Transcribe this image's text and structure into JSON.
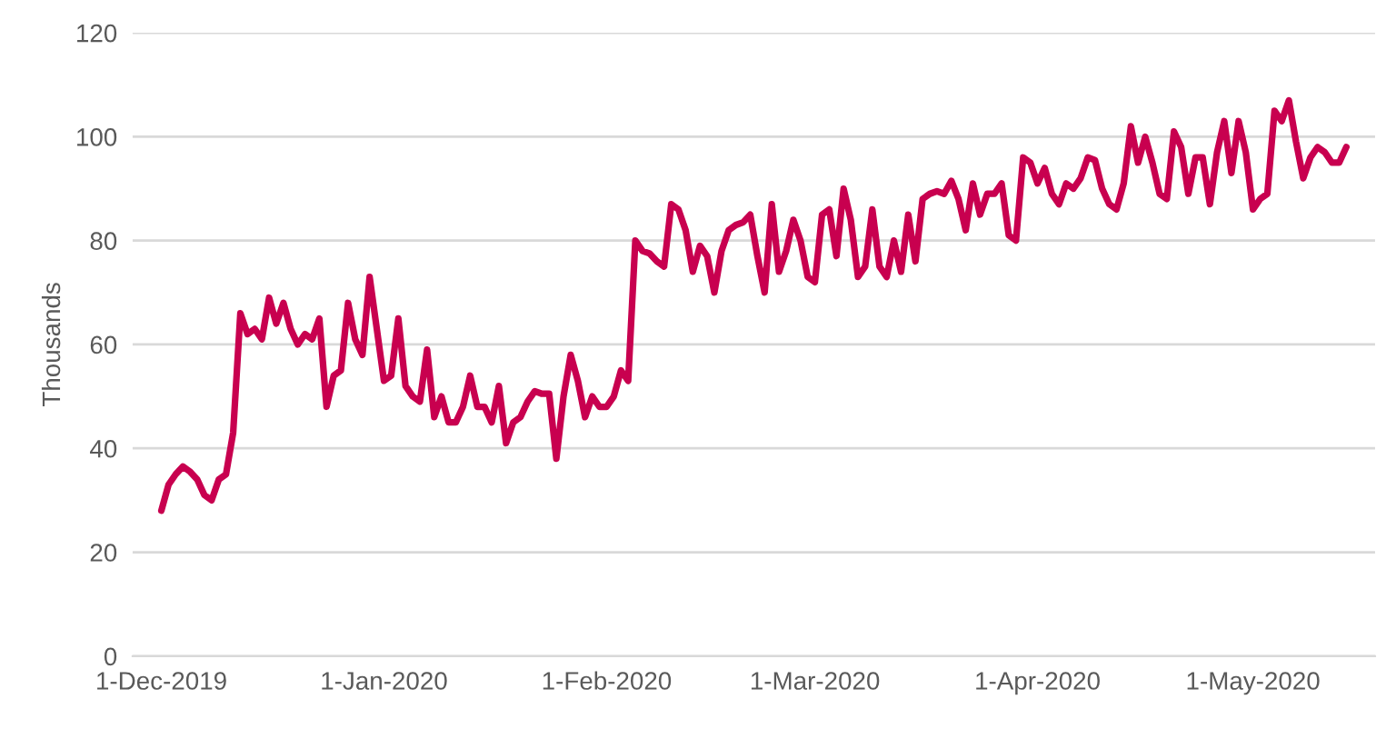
{
  "chart_data": {
    "type": "line",
    "ylabel": "Thousands",
    "x": [
      "2019-12-01",
      "2019-12-02",
      "2019-12-03",
      "2019-12-04",
      "2019-12-05",
      "2019-12-06",
      "2019-12-07",
      "2019-12-08",
      "2019-12-09",
      "2019-12-10",
      "2019-12-11",
      "2019-12-12",
      "2019-12-13",
      "2019-12-14",
      "2019-12-15",
      "2019-12-16",
      "2019-12-17",
      "2019-12-18",
      "2019-12-19",
      "2019-12-20",
      "2019-12-21",
      "2019-12-22",
      "2019-12-23",
      "2019-12-24",
      "2019-12-25",
      "2019-12-26",
      "2019-12-27",
      "2019-12-28",
      "2019-12-29",
      "2019-12-30",
      "2019-12-31",
      "2020-01-01",
      "2020-01-02",
      "2020-01-03",
      "2020-01-04",
      "2020-01-05",
      "2020-01-06",
      "2020-01-07",
      "2020-01-08",
      "2020-01-09",
      "2020-01-10",
      "2020-01-11",
      "2020-01-12",
      "2020-01-13",
      "2020-01-14",
      "2020-01-15",
      "2020-01-16",
      "2020-01-17",
      "2020-01-18",
      "2020-01-19",
      "2020-01-20",
      "2020-01-21",
      "2020-01-22",
      "2020-01-23",
      "2020-01-24",
      "2020-01-25",
      "2020-01-26",
      "2020-01-27",
      "2020-01-28",
      "2020-01-29",
      "2020-01-30",
      "2020-01-31",
      "2020-02-01",
      "2020-02-02",
      "2020-02-03",
      "2020-02-04",
      "2020-02-05",
      "2020-02-06",
      "2020-02-07",
      "2020-02-08",
      "2020-02-09",
      "2020-02-10",
      "2020-02-11",
      "2020-02-12",
      "2020-02-13",
      "2020-02-14",
      "2020-02-15",
      "2020-02-16",
      "2020-02-17",
      "2020-02-18",
      "2020-02-19",
      "2020-02-20",
      "2020-02-21",
      "2020-02-22",
      "2020-02-23",
      "2020-02-24",
      "2020-02-25",
      "2020-02-26",
      "2020-02-27",
      "2020-02-28",
      "2020-02-29",
      "2020-03-01",
      "2020-03-02",
      "2020-03-03",
      "2020-03-04",
      "2020-03-05",
      "2020-03-06",
      "2020-03-07",
      "2020-03-08",
      "2020-03-09",
      "2020-03-10",
      "2020-03-11",
      "2020-03-12",
      "2020-03-13",
      "2020-03-14",
      "2020-03-15",
      "2020-03-16",
      "2020-03-17",
      "2020-03-18",
      "2020-03-19",
      "2020-03-20",
      "2020-03-21",
      "2020-03-22",
      "2020-03-23",
      "2020-03-24",
      "2020-03-25",
      "2020-03-26",
      "2020-03-27",
      "2020-03-28",
      "2020-03-29",
      "2020-03-30",
      "2020-03-31",
      "2020-04-01",
      "2020-04-02",
      "2020-04-03",
      "2020-04-04",
      "2020-04-05",
      "2020-04-06",
      "2020-04-07",
      "2020-04-08",
      "2020-04-09",
      "2020-04-10",
      "2020-04-11",
      "2020-04-12",
      "2020-04-13",
      "2020-04-14",
      "2020-04-15",
      "2020-04-16",
      "2020-04-17",
      "2020-04-18",
      "2020-04-19",
      "2020-04-20",
      "2020-04-21",
      "2020-04-22",
      "2020-04-23",
      "2020-04-24",
      "2020-04-25",
      "2020-04-26",
      "2020-04-27",
      "2020-04-28",
      "2020-04-29",
      "2020-04-30",
      "2020-05-01",
      "2020-05-02",
      "2020-05-03",
      "2020-05-04",
      "2020-05-05",
      "2020-05-06",
      "2020-05-07",
      "2020-05-08",
      "2020-05-09",
      "2020-05-10",
      "2020-05-11",
      "2020-05-12",
      "2020-05-13",
      "2020-05-14"
    ],
    "series": [
      {
        "color": "#c8004f",
        "values": [
          28,
          33,
          35,
          36.5,
          35.5,
          34,
          31,
          30,
          34,
          35,
          43,
          66,
          62,
          63,
          61,
          69,
          64,
          68,
          63,
          60,
          62,
          61,
          65,
          48,
          54,
          55,
          68,
          61,
          58,
          73,
          63,
          53,
          54,
          65,
          52,
          50,
          49,
          59,
          46,
          50,
          45,
          45,
          48,
          54,
          48,
          48,
          45,
          52,
          41,
          45,
          46,
          49,
          51,
          50.5,
          50.5,
          38,
          50,
          58,
          53,
          46,
          50,
          48,
          48,
          50,
          55,
          53,
          80,
          78,
          77.5,
          76,
          75,
          87,
          86,
          82,
          74,
          79,
          77,
          70,
          78,
          82,
          83,
          83.5,
          85,
          77,
          70,
          87,
          74,
          78,
          84,
          80,
          73,
          72,
          85,
          86,
          77,
          90,
          84,
          73,
          75,
          86,
          75,
          73,
          80,
          74,
          85,
          76,
          88,
          89,
          89.5,
          89,
          91.5,
          88,
          82,
          91,
          85,
          89,
          89,
          91,
          81,
          80,
          96,
          95,
          91,
          94,
          89,
          87,
          91,
          90,
          92,
          96,
          95.5,
          90,
          87,
          86,
          91,
          102,
          95,
          100,
          95,
          89,
          88,
          101,
          98,
          89,
          96,
          96,
          87,
          97,
          103,
          93,
          103,
          97,
          86,
          88,
          89,
          105,
          103,
          107,
          99,
          92,
          96,
          98,
          97,
          95,
          95,
          98
        ]
      }
    ],
    "xlim": [
      "2019-11-27",
      "2020-05-18"
    ],
    "xticks": [
      {
        "value": "2019-12-01",
        "label": "1-Dec-2019"
      },
      {
        "value": "2020-01-01",
        "label": "1-Jan-2020"
      },
      {
        "value": "2020-02-01",
        "label": "1-Feb-2020"
      },
      {
        "value": "2020-03-01",
        "label": "1-Mar-2020"
      },
      {
        "value": "2020-04-01",
        "label": "1-Apr-2020"
      },
      {
        "value": "2020-05-01",
        "label": "1-May-2020"
      }
    ],
    "ylim": [
      0,
      120
    ],
    "yticks": [
      0,
      20,
      40,
      60,
      80,
      100,
      120
    ],
    "grid": "y",
    "line_style": "solid",
    "marker": "none"
  }
}
